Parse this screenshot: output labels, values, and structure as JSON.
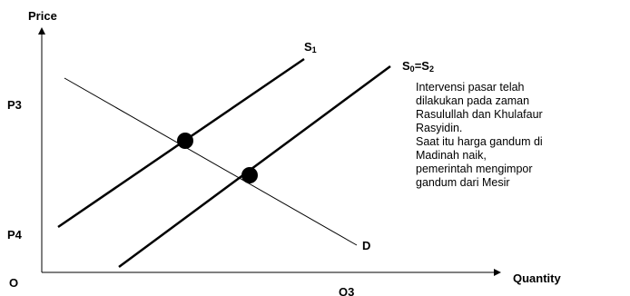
{
  "axes": {
    "y_label": "Price",
    "x_label": "Quantity",
    "origin_label": "O"
  },
  "price_levels": {
    "p3": "P3",
    "p4": "P4"
  },
  "quantity_levels": {
    "q3": "Q3"
  },
  "curves": {
    "s1": {
      "main": "S",
      "sub": "1"
    },
    "s0": {
      "main": "S",
      "sub0": "0",
      "mid": "=S",
      "sub2": "2"
    },
    "demand": "D"
  },
  "note_lines": [
    "Intervensi pasar telah",
    "dilakukan pada zaman",
    "Rasulullah dan Khulafaur",
    "Rasyidin.",
    "Saat itu harga gandum di",
    "Madinah naik,",
    "pemerintah mengimpor",
    "gandum dari Mesir"
  ]
}
